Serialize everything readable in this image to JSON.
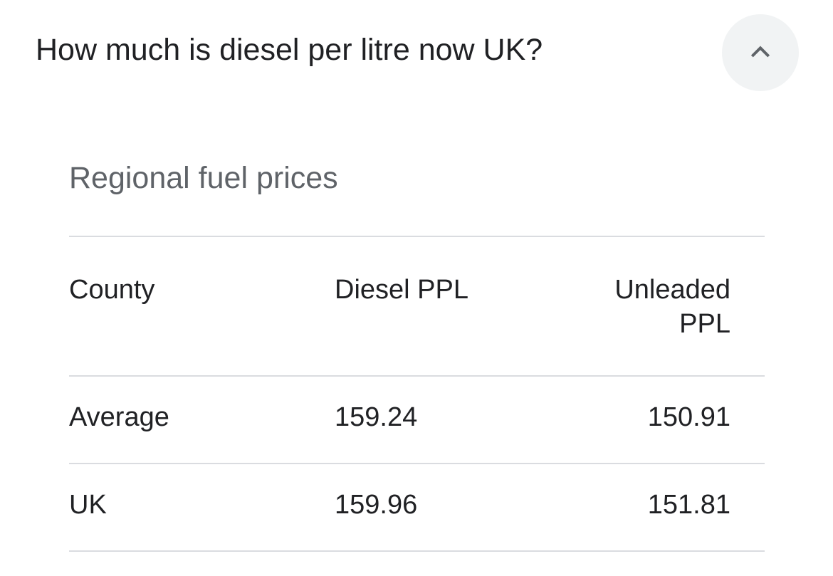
{
  "question": "How much is diesel per litre now UK?",
  "toggle_icon": "chevron-up-icon",
  "subtitle": "Regional fuel prices",
  "table": {
    "headers": [
      "County",
      "Diesel PPL",
      "Unleaded PPL"
    ],
    "rows": [
      [
        "Average",
        "159.24",
        "150.91"
      ],
      [
        "UK",
        "159.96",
        "151.81"
      ]
    ]
  }
}
